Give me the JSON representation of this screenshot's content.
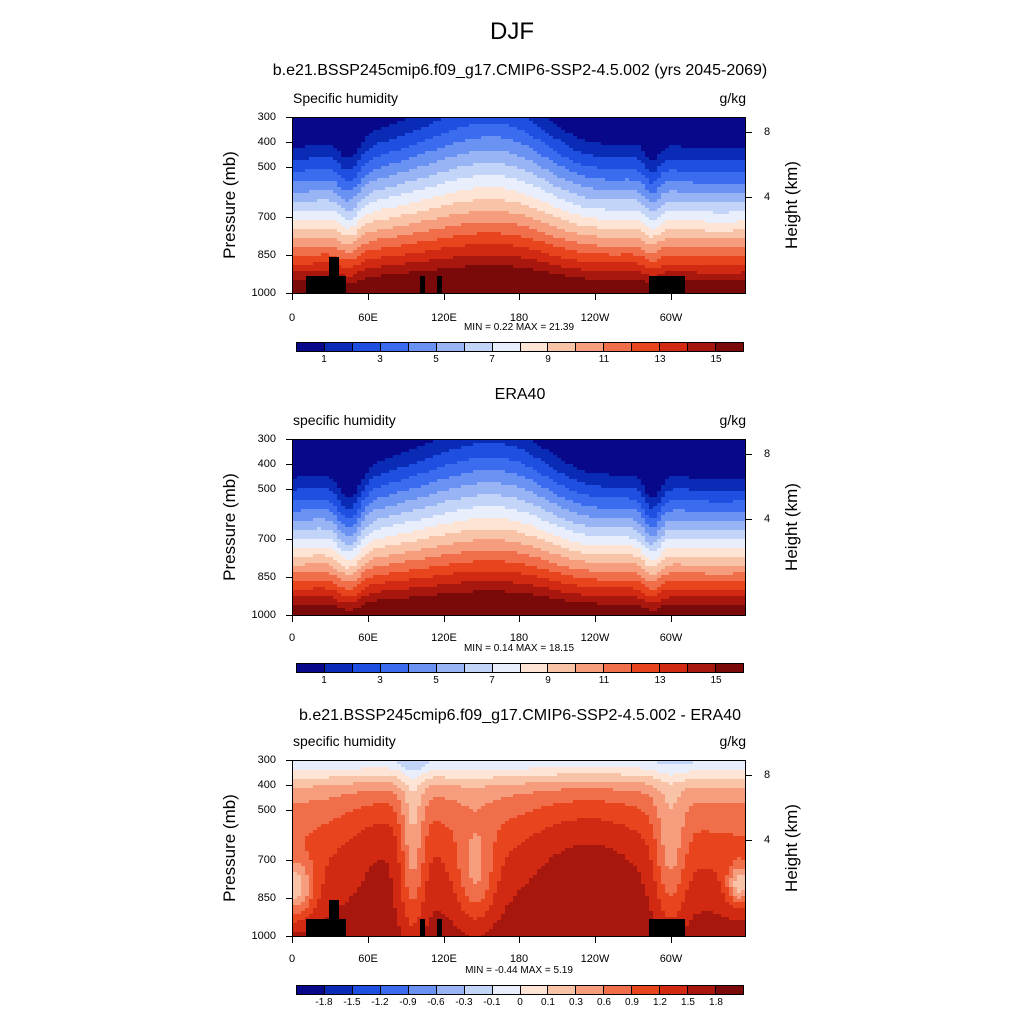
{
  "page_title": "DJF",
  "panels": [
    {
      "title": "b.e21.BSSP245cmip6.f09_g17.CMIP6-SSP2-4.5.002 (yrs 2045-2069)",
      "var_label": "Specific humidity",
      "units": "g/kg",
      "ylabel_left": "Pressure (mb)",
      "ylabel_right": "Height (km)",
      "min_max": "MIN =   0.22  MAX =  21.39"
    },
    {
      "title": "ERA40",
      "var_label": "specific humidity",
      "units": "g/kg",
      "ylabel_left": "Pressure (mb)",
      "ylabel_right": "Height (km)",
      "min_max": "MIN =   0.14  MAX =  18.15"
    },
    {
      "title": "b.e21.BSSP245cmip6.f09_g17.CMIP6-SSP2-4.5.002 - ERA40",
      "var_label": "specific humidity",
      "units": "g/kg",
      "ylabel_left": "Pressure (mb)",
      "ylabel_right": "Height (km)",
      "min_max": "MIN =  -0.44  MAX =   5.19"
    }
  ],
  "colorbars": {
    "abs": {
      "colors": [
        "#08088a",
        "#0a2bb5",
        "#1f4fe0",
        "#3b6cf0",
        "#6a92f2",
        "#98b4f5",
        "#c2d4f8",
        "#e8eefb",
        "#fde4d4",
        "#f9c3a8",
        "#f59d7c",
        "#f06e4a",
        "#e8451f",
        "#d22a12",
        "#a8170e",
        "#7a0a0a"
      ],
      "labels": [
        "1",
        "3",
        "5",
        "7",
        "9",
        "11",
        "13",
        "15"
      ]
    },
    "diff": {
      "colors": [
        "#08088a",
        "#0a2bb5",
        "#1f4fe0",
        "#3b6cf0",
        "#6a92f2",
        "#98b4f5",
        "#c2d4f8",
        "#e8eefb",
        "#fde4d4",
        "#f9c3a8",
        "#f59d7c",
        "#f06e4a",
        "#e8451f",
        "#d22a12",
        "#a8170e",
        "#7a0a0a"
      ],
      "labels": [
        "-1.8",
        "-1.5",
        "-1.2",
        "-0.9",
        "-0.6",
        "-0.3",
        "-0.1",
        "0",
        "0.1",
        "0.3",
        "0.6",
        "0.9",
        "1.2",
        "1.5",
        "1.8"
      ]
    }
  },
  "axes": {
    "pressure_ticks": [
      "300",
      "400",
      "500",
      "700",
      "850",
      "1000"
    ],
    "height_ticks": [
      "8",
      "4"
    ],
    "lon_ticks": [
      "0",
      "60E",
      "120E",
      "180",
      "120W",
      "60W"
    ]
  },
  "chart_data": [
    {
      "type": "heatmap",
      "title": "b.e21.BSSP245cmip6.f09_g17.CMIP6-SSP2-4.5.002 (yrs 2045-2069)",
      "variable": "Specific humidity",
      "units": "g/kg",
      "x_axis": "longitude",
      "x_ticks": [
        "0",
        "60E",
        "120E",
        "180",
        "120W",
        "60W"
      ],
      "y_axis": "Pressure (mb)",
      "y_ticks": [
        300,
        400,
        500,
        700,
        850,
        1000
      ],
      "y_axis_right": "Height (km)",
      "y_right_ticks": [
        8,
        4
      ],
      "contour_levels": [
        0,
        1,
        2,
        3,
        4,
        5,
        6,
        7,
        8,
        9,
        10,
        11,
        12,
        13,
        14,
        15,
        16
      ],
      "min": 0.22,
      "max": 21.39
    },
    {
      "type": "heatmap",
      "title": "ERA40",
      "variable": "specific humidity",
      "units": "g/kg",
      "x_axis": "longitude",
      "x_ticks": [
        "0",
        "60E",
        "120E",
        "180",
        "120W",
        "60W"
      ],
      "y_axis": "Pressure (mb)",
      "y_ticks": [
        300,
        400,
        500,
        700,
        850,
        1000
      ],
      "y_axis_right": "Height (km)",
      "y_right_ticks": [
        8,
        4
      ],
      "contour_levels": [
        0,
        1,
        2,
        3,
        4,
        5,
        6,
        7,
        8,
        9,
        10,
        11,
        12,
        13,
        14,
        15,
        16
      ],
      "min": 0.14,
      "max": 18.15
    },
    {
      "type": "heatmap",
      "title": "b.e21.BSSP245cmip6.f09_g17.CMIP6-SSP2-4.5.002 - ERA40",
      "variable": "specific humidity",
      "units": "g/kg",
      "x_axis": "longitude",
      "x_ticks": [
        "0",
        "60E",
        "120E",
        "180",
        "120W",
        "60W"
      ],
      "y_axis": "Pressure (mb)",
      "y_ticks": [
        300,
        400,
        500,
        700,
        850,
        1000
      ],
      "y_axis_right": "Height (km)",
      "y_right_ticks": [
        8,
        4
      ],
      "contour_levels": [
        -1.8,
        -1.5,
        -1.2,
        -0.9,
        -0.6,
        -0.3,
        -0.1,
        0,
        0.1,
        0.3,
        0.6,
        0.9,
        1.2,
        1.5,
        1.8
      ],
      "min": -0.44,
      "max": 5.19
    }
  ]
}
